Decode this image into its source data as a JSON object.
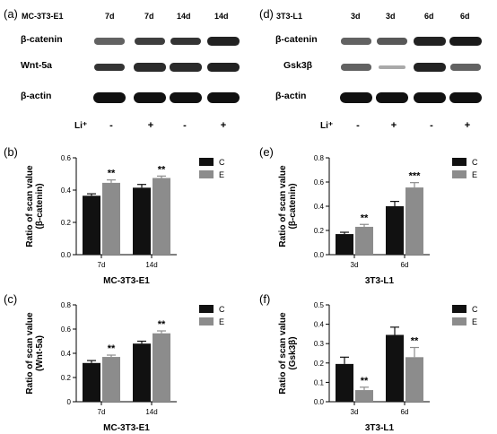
{
  "panels": {
    "a": "(a)",
    "b": "(b)",
    "c": "(c)",
    "d": "(d)",
    "e": "(e)",
    "f": "(f)"
  },
  "blot_left": {
    "cell_line": "MC-3T3-E1",
    "lanes": [
      "7d",
      "7d",
      "14d",
      "14d"
    ],
    "rows": [
      "β-catenin",
      "Wnt-5a",
      "β-actin"
    ],
    "li_label": "Li⁺",
    "li_marks": [
      "-",
      "+",
      "-",
      "+"
    ],
    "band_intensity": [
      [
        0.55,
        0.75,
        0.8,
        0.9
      ],
      [
        0.8,
        0.85,
        0.85,
        0.9
      ],
      [
        1.0,
        1.0,
        1.0,
        1.0
      ]
    ]
  },
  "blot_right": {
    "cell_line": "3T3-L1",
    "lanes": [
      "3d",
      "3d",
      "6d",
      "6d"
    ],
    "rows": [
      "β-catenin",
      "Gsk3β",
      "β-actin"
    ],
    "li_label": "Li⁺",
    "li_marks": [
      "-",
      "+",
      "-",
      "+"
    ],
    "band_intensity": [
      [
        0.55,
        0.6,
        0.9,
        0.95
      ],
      [
        0.55,
        0.15,
        0.9,
        0.55
      ],
      [
        1.0,
        1.0,
        1.0,
        1.0
      ]
    ]
  },
  "chart_data": [
    {
      "panel": "b",
      "type": "bar",
      "categories": [
        "7d",
        "14d"
      ],
      "series": [
        {
          "name": "C",
          "values": [
            0.365,
            0.415
          ],
          "errors": [
            0.012,
            0.02
          ],
          "color": "#111111"
        },
        {
          "name": "E",
          "values": [
            0.445,
            0.475
          ],
          "errors": [
            0.018,
            0.012
          ],
          "color": "#8c8c8c"
        }
      ],
      "significance": [
        "**",
        "**"
      ],
      "ylabel": [
        "Ratio of scan value",
        "(β-catenin)"
      ],
      "yticks": [
        "0.0",
        "0.2",
        "0.4",
        "0.6"
      ],
      "ylim": [
        0,
        0.6
      ],
      "xlabel": "MC-3T3-E1",
      "legend": "top-right",
      "grid": false
    },
    {
      "panel": "c",
      "type": "bar",
      "categories": [
        "7d",
        "14d"
      ],
      "series": [
        {
          "name": "C",
          "values": [
            0.32,
            0.48
          ],
          "errors": [
            0.02,
            0.02
          ],
          "color": "#111111"
        },
        {
          "name": "E",
          "values": [
            0.37,
            0.565
          ],
          "errors": [
            0.015,
            0.02
          ],
          "color": "#8c8c8c"
        }
      ],
      "significance": [
        "**",
        "**"
      ],
      "ylabel": [
        "Ratio of scan value",
        "(Wnt-5a)"
      ],
      "yticks": [
        "0",
        "0.2",
        "0.4",
        "0.6",
        "0.8"
      ],
      "ylim": [
        0,
        0.8
      ],
      "xlabel": "MC-3T3-E1",
      "legend": "top-right",
      "grid": false
    },
    {
      "panel": "e",
      "type": "bar",
      "categories": [
        "3d",
        "6d"
      ],
      "series": [
        {
          "name": "C",
          "values": [
            0.17,
            0.4
          ],
          "errors": [
            0.015,
            0.04
          ],
          "color": "#111111"
        },
        {
          "name": "E",
          "values": [
            0.23,
            0.555
          ],
          "errors": [
            0.02,
            0.04
          ],
          "color": "#8c8c8c"
        }
      ],
      "significance": [
        "**",
        "***"
      ],
      "ylabel": [
        "Ratio of scan value",
        "(β-catenin)"
      ],
      "yticks": [
        "0.0",
        "0.2",
        "0.4",
        "0.6",
        "0.8"
      ],
      "ylim": [
        0,
        0.8
      ],
      "xlabel": "3T3-L1",
      "legend": "top-right",
      "grid": false
    },
    {
      "panel": "f",
      "type": "bar",
      "categories": [
        "3d",
        "6d"
      ],
      "series": [
        {
          "name": "C",
          "values": [
            0.195,
            0.345
          ],
          "errors": [
            0.035,
            0.04
          ],
          "color": "#111111"
        },
        {
          "name": "E",
          "values": [
            0.06,
            0.23
          ],
          "errors": [
            0.015,
            0.05
          ],
          "color": "#8c8c8c"
        }
      ],
      "significance": [
        "**",
        "**"
      ],
      "ylabel": [
        "Ratio of scan value",
        "(Gsk3β)"
      ],
      "yticks": [
        "0.0",
        "0.1",
        "0.2",
        "0.3",
        "0.4",
        "0.5"
      ],
      "ylim": [
        0,
        0.5
      ],
      "xlabel": "3T3-L1",
      "legend": "top-right",
      "grid": false
    }
  ]
}
